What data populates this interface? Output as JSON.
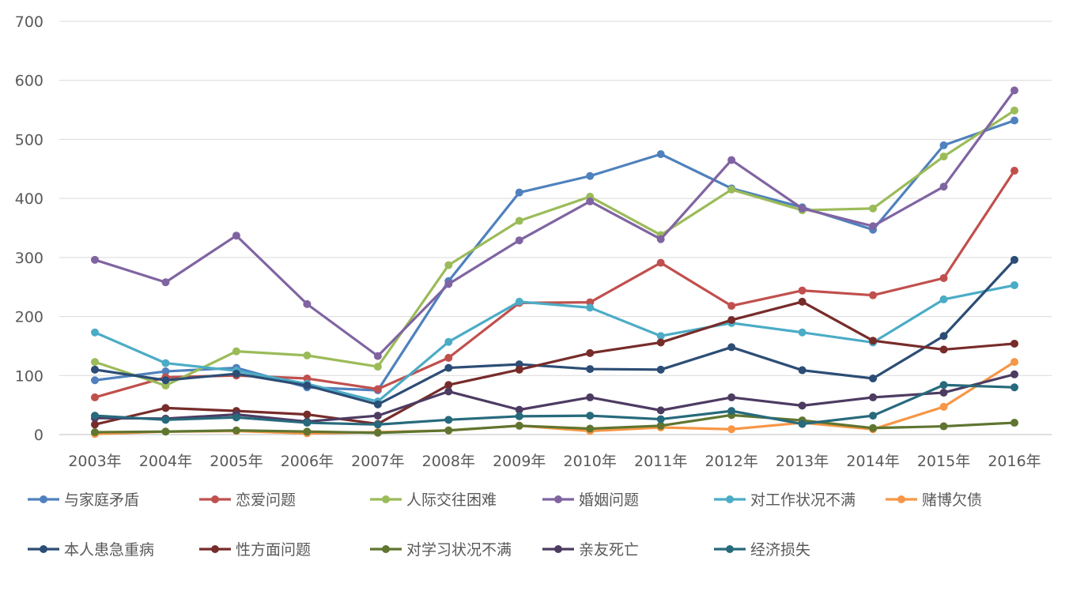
{
  "chart_data": {
    "type": "line",
    "title": "",
    "xlabel": "",
    "ylabel": "",
    "ylim": [
      0,
      700
    ],
    "yticks": [
      "0",
      "100",
      "200",
      "300",
      "400",
      "500",
      "600",
      "700"
    ],
    "grid": true,
    "legend_position": "bottom",
    "categories": [
      "2003年",
      "2004年",
      "2005年",
      "2006年",
      "2007年",
      "2008年",
      "2009年",
      "2010年",
      "2011年",
      "2012年",
      "2013年",
      "2014年",
      "2015年",
      "2016年"
    ],
    "series": [
      {
        "name": "与家庭矛盾",
        "color": "#4F81BD",
        "values": [
          92,
          107,
          113,
          80,
          75,
          260,
          410,
          438,
          475,
          417,
          385,
          347,
          490,
          532
        ]
      },
      {
        "name": "恋爱问题",
        "color": "#C0504D",
        "values": [
          63,
          97,
          100,
          95,
          77,
          130,
          223,
          224,
          291,
          218,
          244,
          236,
          265,
          447
        ]
      },
      {
        "name": "人际交往困难",
        "color": "#9BBB59",
        "values": [
          123,
          83,
          141,
          134,
          115,
          287,
          362,
          403,
          338,
          415,
          380,
          383,
          471,
          549
        ]
      },
      {
        "name": "婚姻问题",
        "color": "#8064A2",
        "values": [
          296,
          258,
          337,
          221,
          133,
          255,
          329,
          395,
          331,
          465,
          383,
          353,
          420,
          583
        ]
      },
      {
        "name": "对工作状况不满",
        "color": "#4BACC6",
        "values": [
          173,
          121,
          108,
          86,
          56,
          157,
          225,
          215,
          167,
          189,
          173,
          156,
          229,
          253
        ]
      },
      {
        "name": "赌博欠债",
        "color": "#F79646",
        "values": [
          1,
          5,
          6,
          2,
          4,
          7,
          15,
          6,
          12,
          9,
          20,
          9,
          47,
          123
        ]
      },
      {
        "name": "本人患急重病",
        "color": "#2C4D75",
        "values": [
          110,
          92,
          103,
          83,
          51,
          113,
          119,
          111,
          110,
          148,
          109,
          95,
          167,
          296
        ]
      },
      {
        "name": "性方面问题",
        "color": "#772C2A",
        "values": [
          17,
          45,
          40,
          34,
          18,
          84,
          110,
          138,
          156,
          194,
          225,
          159,
          144,
          154
        ]
      },
      {
        "name": "对学习状况不满",
        "color": "#5F7530",
        "values": [
          4,
          5,
          7,
          5,
          3,
          7,
          15,
          10,
          15,
          33,
          24,
          11,
          14,
          20
        ]
      },
      {
        "name": "亲友死亡",
        "color": "#4D3B62",
        "values": [
          28,
          27,
          34,
          22,
          32,
          73,
          42,
          63,
          41,
          63,
          49,
          63,
          71,
          102
        ]
      },
      {
        "name": "经济损失",
        "color": "#276A7C",
        "values": [
          32,
          25,
          29,
          20,
          17,
          25,
          31,
          32,
          26,
          40,
          18,
          32,
          84,
          80
        ]
      }
    ]
  }
}
